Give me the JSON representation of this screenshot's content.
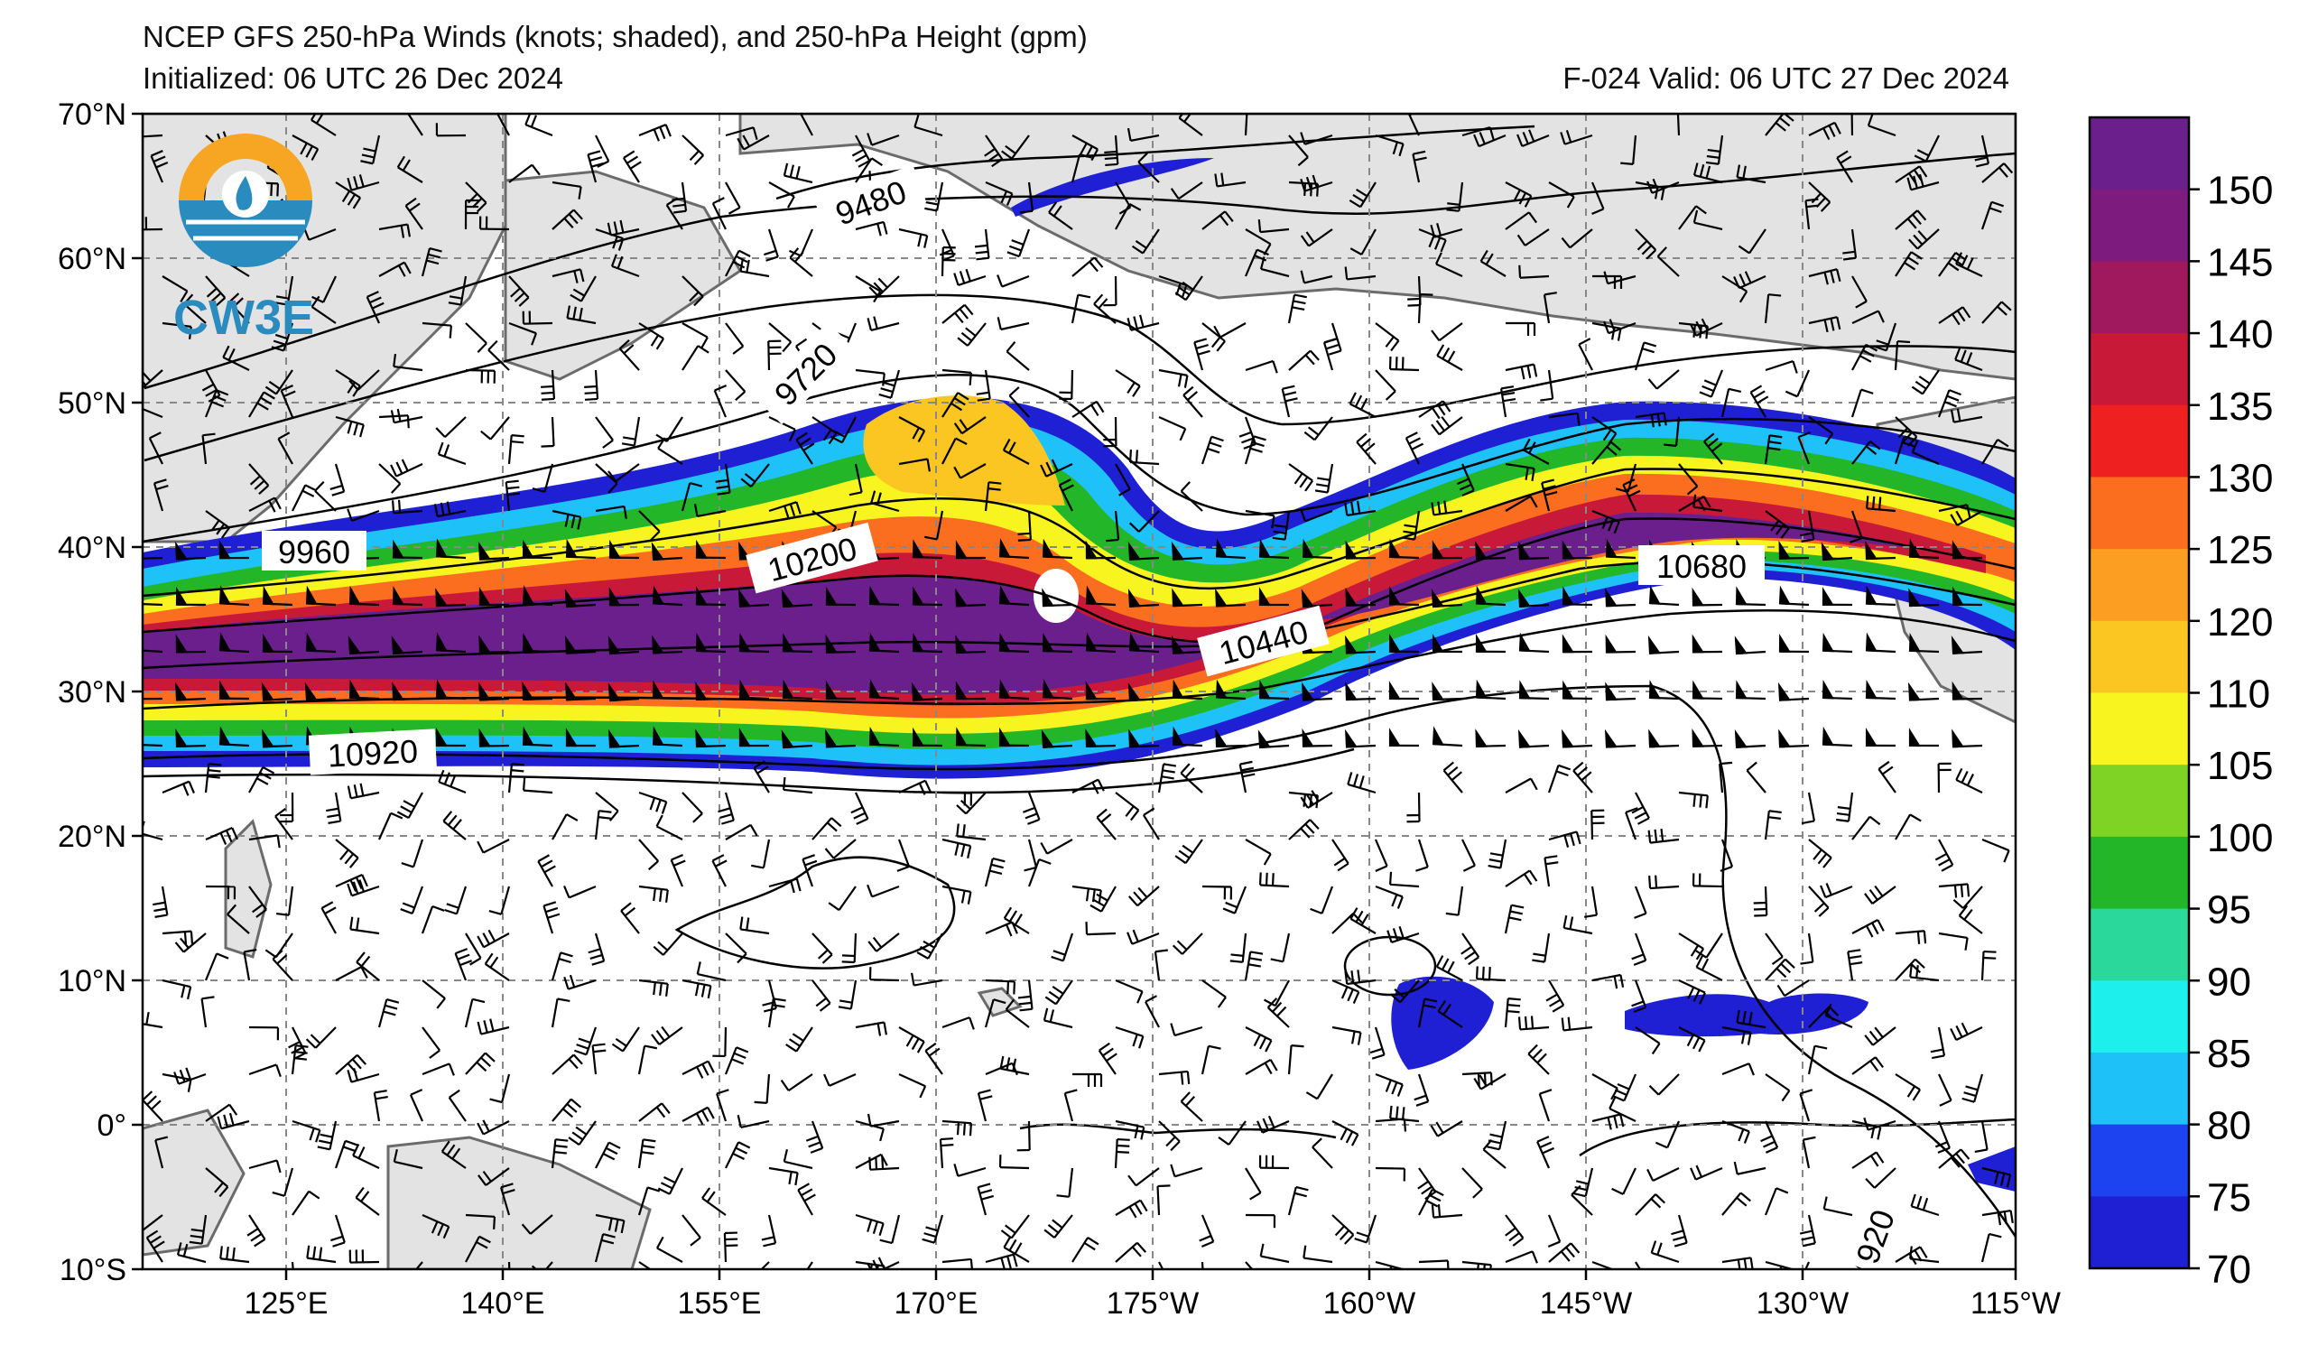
{
  "header": {
    "title": "NCEP GFS 250-hPa Winds (knots; shaded), and 250-hPa Height (gpm)",
    "initialized": "Initialized: 06 UTC 26 Dec 2024",
    "valid": "F-024  Valid: 06 UTC 27 Dec 2024"
  },
  "logo": {
    "text": "CW3E"
  },
  "map": {
    "lat_labels": [
      "70°N",
      "60°N",
      "50°N",
      "40°N",
      "30°N",
      "20°N",
      "10°N",
      "0°",
      "10°S"
    ],
    "lon_labels": [
      "125°E",
      "140°E",
      "155°E",
      "170°E",
      "175°W",
      "160°W",
      "145°W",
      "130°W",
      "115°W"
    ],
    "contour_labels": [
      "9480",
      "9720",
      "9960",
      "10200",
      "10440",
      "10680",
      "10920",
      "920"
    ]
  },
  "colorbar": {
    "ticks": [
      "150",
      "145",
      "140",
      "135",
      "130",
      "125",
      "120",
      "110",
      "105",
      "100",
      "95",
      "90",
      "85",
      "80",
      "75",
      "70"
    ],
    "colors": [
      "#6a1f8c",
      "#7e1b7e",
      "#a0185e",
      "#c81938",
      "#ee2020",
      "#fb6d1f",
      "#fc9e21",
      "#fbc621",
      "#f8f41f",
      "#7fd324",
      "#23b629",
      "#2ad89c",
      "#1df0ec",
      "#1fc2f8",
      "#1c43ef",
      "#1f1fd4"
    ]
  }
}
